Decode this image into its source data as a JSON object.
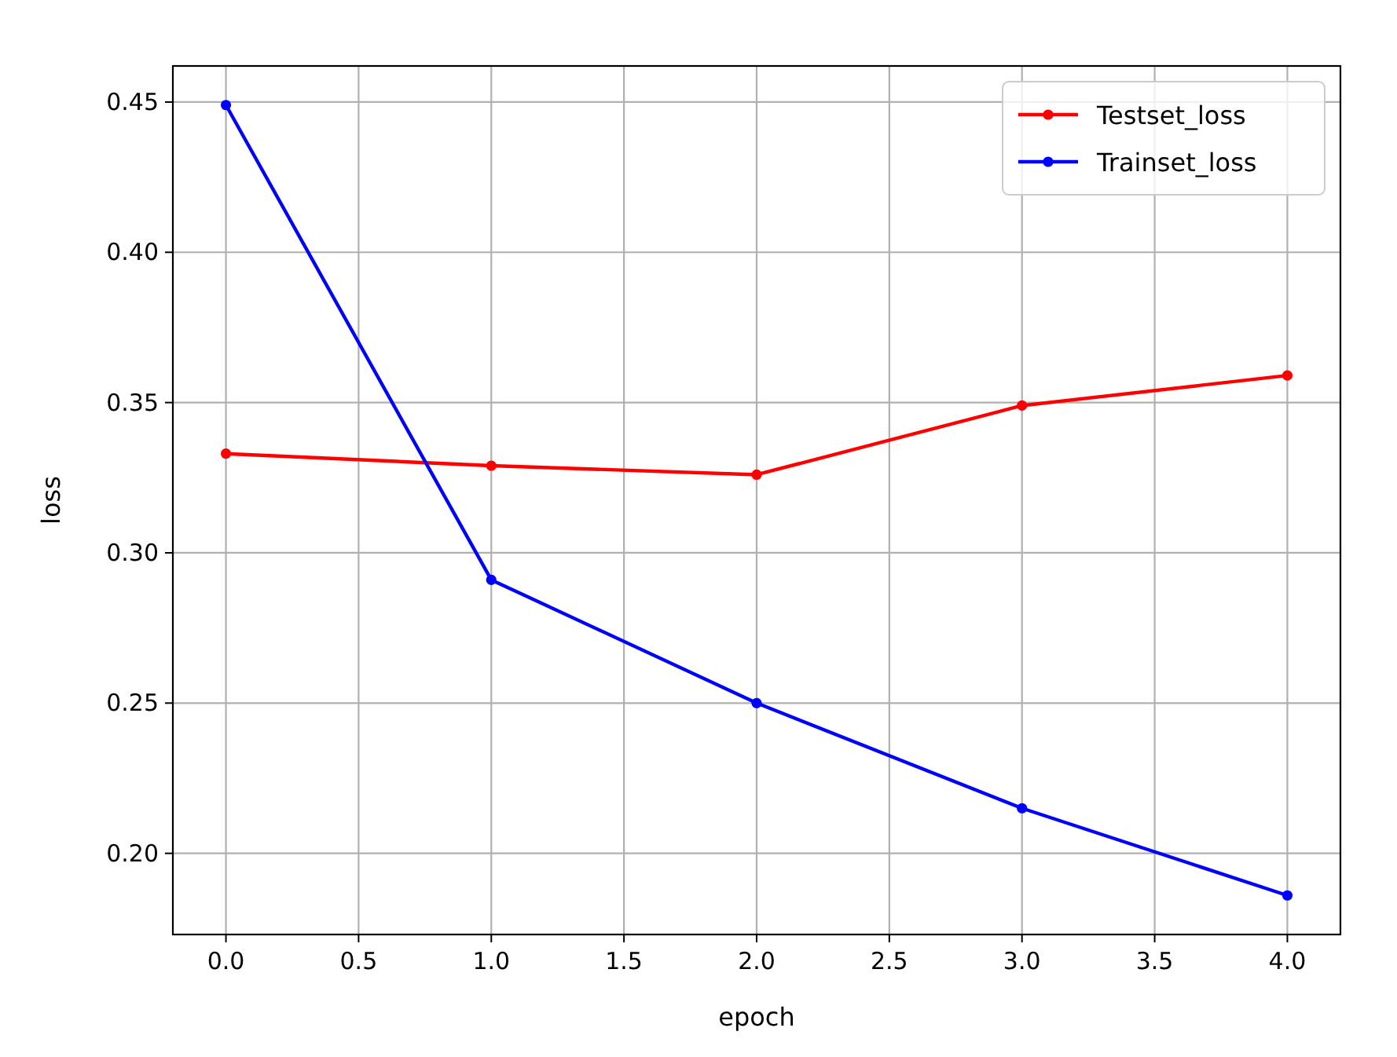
{
  "chart_data": {
    "type": "line",
    "xlabel": "epoch",
    "ylabel": "loss",
    "x": [
      0,
      1,
      2,
      3,
      4
    ],
    "series": [
      {
        "name": "Testset_loss",
        "color": "#ff0000",
        "values": [
          0.333,
          0.329,
          0.326,
          0.349,
          0.359
        ]
      },
      {
        "name": "Trainset_loss",
        "color": "#0000ff",
        "values": [
          0.449,
          0.291,
          0.25,
          0.215,
          0.186
        ]
      }
    ],
    "xlim": [
      -0.2,
      4.2
    ],
    "xticks": [
      {
        "value": 0,
        "label": "0.0"
      },
      {
        "value": 0.5,
        "label": "0.5"
      },
      {
        "value": 1,
        "label": "1.0"
      },
      {
        "value": 1.5,
        "label": "1.5"
      },
      {
        "value": 2,
        "label": "2.0"
      },
      {
        "value": 2.5,
        "label": "2.5"
      },
      {
        "value": 3,
        "label": "3.0"
      },
      {
        "value": 3.5,
        "label": "3.5"
      },
      {
        "value": 4,
        "label": "4.0"
      }
    ],
    "ylim": [
      0.173,
      0.462
    ],
    "yticks": [
      {
        "value": 0.2,
        "label": "0.20"
      },
      {
        "value": 0.25,
        "label": "0.25"
      },
      {
        "value": 0.3,
        "label": "0.30"
      },
      {
        "value": 0.35,
        "label": "0.35"
      },
      {
        "value": 0.4,
        "label": "0.40"
      },
      {
        "value": 0.45,
        "label": "0.45"
      }
    ],
    "grid": true,
    "legend": "top right",
    "marker": "circle",
    "line_style": "solid"
  }
}
